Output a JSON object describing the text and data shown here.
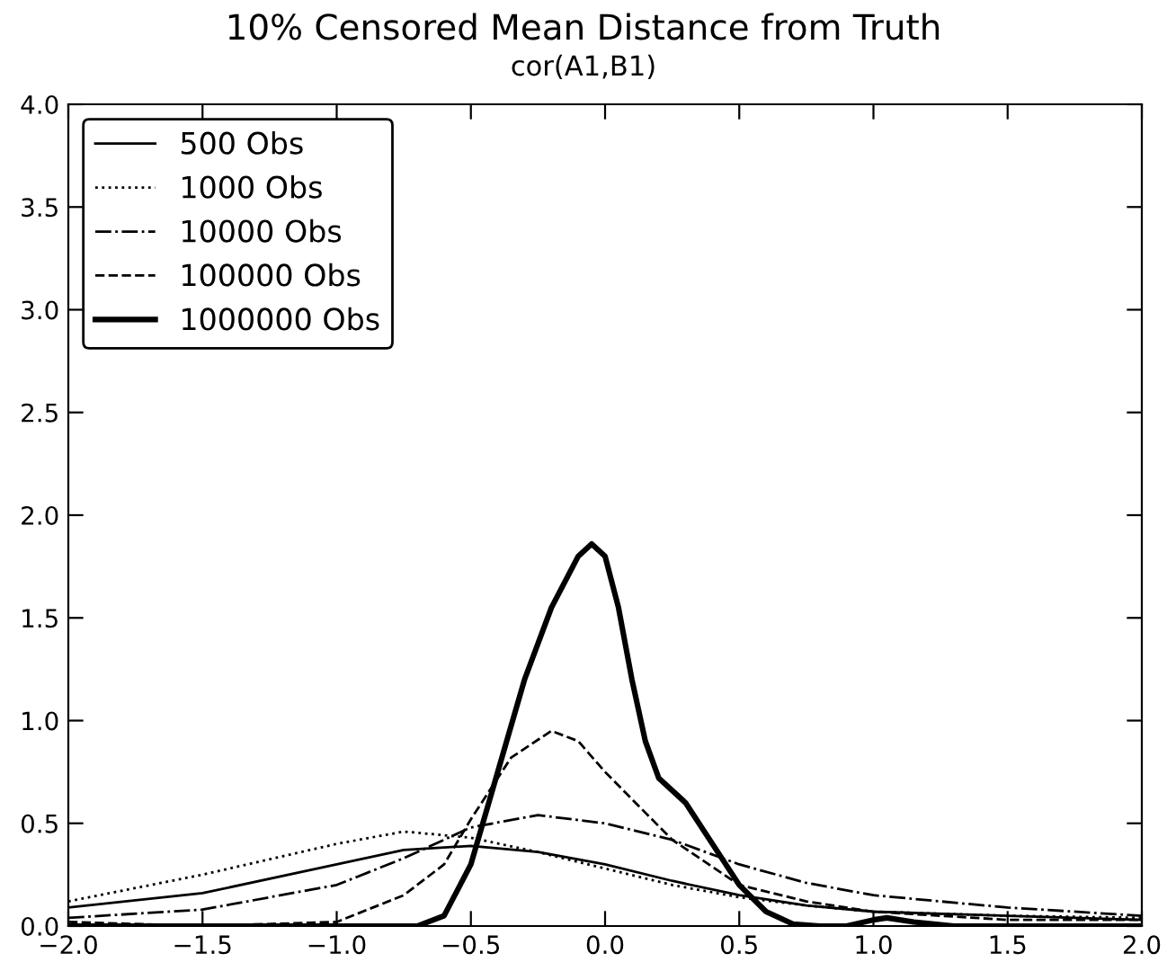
{
  "chart_data": {
    "type": "line",
    "title": "10% Censored Mean Distance from Truth",
    "subtitle": "cor(A1,B1)",
    "series": [
      {
        "name": "500 Obs",
        "color": "#000000",
        "line_style": "solid",
        "x": [
          -2.0,
          -1.5,
          -1.0,
          -0.75,
          -0.5,
          -0.25,
          0.0,
          0.25,
          0.5,
          0.75,
          1.0,
          1.5,
          2.0
        ],
        "values": [
          0.09,
          0.16,
          0.3,
          0.37,
          0.39,
          0.36,
          0.3,
          0.22,
          0.15,
          0.1,
          0.07,
          0.05,
          0.03
        ]
      },
      {
        "name": "1000 Obs",
        "color": "#000000",
        "line_style": "dotted",
        "x": [
          -2.0,
          -1.5,
          -1.0,
          -0.75,
          -0.5,
          -0.25,
          0.0,
          0.25,
          0.5,
          0.75,
          1.0,
          1.5,
          2.0
        ],
        "values": [
          0.12,
          0.25,
          0.4,
          0.46,
          0.43,
          0.36,
          0.28,
          0.2,
          0.14,
          0.1,
          0.07,
          0.05,
          0.04
        ]
      },
      {
        "name": "10000 Obs",
        "color": "#000000",
        "line_style": "dashdot",
        "x": [
          -2.0,
          -1.5,
          -1.0,
          -0.75,
          -0.5,
          -0.25,
          0.0,
          0.25,
          0.5,
          0.75,
          1.0,
          1.5,
          2.0
        ],
        "values": [
          0.04,
          0.08,
          0.2,
          0.33,
          0.48,
          0.54,
          0.5,
          0.42,
          0.3,
          0.21,
          0.15,
          0.09,
          0.05
        ]
      },
      {
        "name": "100000 Obs",
        "color": "#000000",
        "line_style": "dashed",
        "x": [
          -2.0,
          -1.5,
          -1.0,
          -0.75,
          -0.6,
          -0.5,
          -0.35,
          -0.2,
          -0.1,
          0.0,
          0.25,
          0.5,
          0.75,
          1.0,
          1.5,
          2.0
        ],
        "values": [
          0.02,
          0.0,
          0.02,
          0.15,
          0.3,
          0.52,
          0.82,
          0.95,
          0.9,
          0.75,
          0.42,
          0.2,
          0.12,
          0.07,
          0.03,
          0.03
        ]
      },
      {
        "name": "1000000 Obs",
        "color": "#000000",
        "line_style": "solid",
        "x": [
          -2.0,
          -0.7,
          -0.6,
          -0.5,
          -0.4,
          -0.3,
          -0.2,
          -0.1,
          -0.05,
          0.0,
          0.05,
          0.1,
          0.15,
          0.2,
          0.3,
          0.4,
          0.5,
          0.6,
          0.7,
          0.8,
          0.9,
          1.0,
          1.05,
          1.15,
          1.3,
          2.0
        ],
        "values": [
          0.0,
          0.0,
          0.05,
          0.3,
          0.75,
          1.2,
          1.55,
          1.8,
          1.86,
          1.8,
          1.55,
          1.2,
          0.9,
          0.72,
          0.6,
          0.4,
          0.2,
          0.07,
          0.01,
          0.0,
          0.0,
          0.03,
          0.04,
          0.02,
          0.0,
          0.0
        ]
      }
    ],
    "xlim": [
      -2.0,
      2.0
    ],
    "ylim": [
      0.0,
      4.0
    ],
    "xticks": [
      {
        "value": -2.0,
        "label": "−2.0"
      },
      {
        "value": -1.5,
        "label": "−1.5"
      },
      {
        "value": -1.0,
        "label": "−1.0"
      },
      {
        "value": -0.5,
        "label": "−0.5"
      },
      {
        "value": 0.0,
        "label": "0.0"
      },
      {
        "value": 0.5,
        "label": "0.5"
      },
      {
        "value": 1.0,
        "label": "1.0"
      },
      {
        "value": 1.5,
        "label": "1.5"
      },
      {
        "value": 2.0,
        "label": "2.0"
      }
    ],
    "yticks": [
      {
        "value": 0.0,
        "label": "0.0"
      },
      {
        "value": 0.5,
        "label": "0.5"
      },
      {
        "value": 1.0,
        "label": "1.0"
      },
      {
        "value": 1.5,
        "label": "1.5"
      },
      {
        "value": 2.0,
        "label": "2.0"
      },
      {
        "value": 2.5,
        "label": "2.5"
      },
      {
        "value": 3.0,
        "label": "3.0"
      },
      {
        "value": 3.5,
        "label": "3.5"
      },
      {
        "value": 4.0,
        "label": "4.0"
      }
    ],
    "legend": "top left",
    "grid": false
  }
}
